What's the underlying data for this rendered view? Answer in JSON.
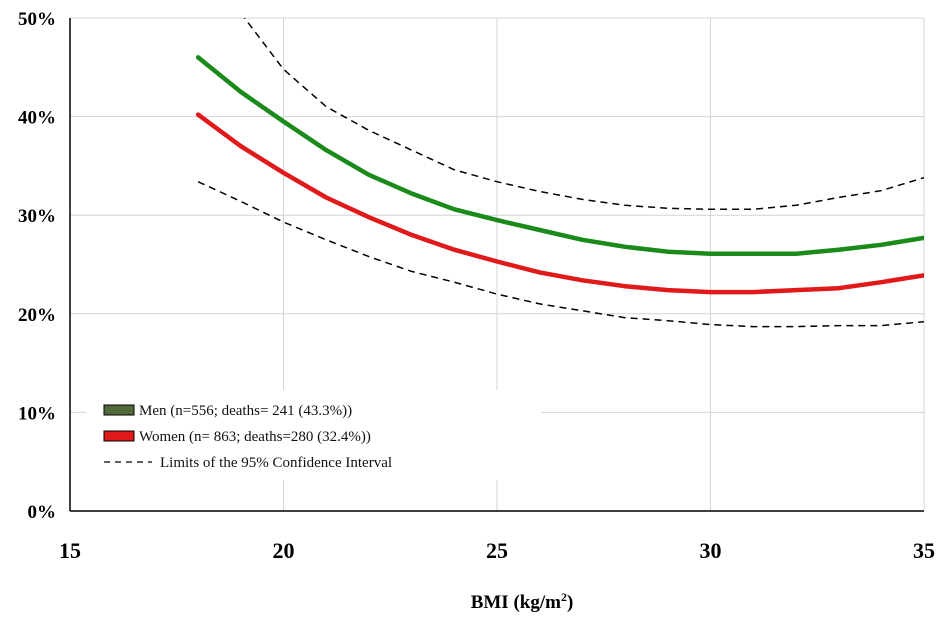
{
  "chart_data": {
    "type": "line",
    "title": "",
    "xlabel": "BMI (kg/m2)",
    "xlabel_main": "BMI (kg/m",
    "xlabel_sup": "2",
    "xlabel_end": ")",
    "ylabel": "",
    "xlim": [
      15,
      35
    ],
    "ylim": [
      0,
      50
    ],
    "x_ticks": [
      15,
      20,
      25,
      30,
      35
    ],
    "y_ticks": [
      0,
      10,
      20,
      30,
      40,
      50
    ],
    "y_tick_labels": [
      "0%",
      "10%",
      "20%",
      "30%",
      "40%",
      "50%"
    ],
    "grid": true,
    "legend_position": "bottom-left",
    "x": [
      18,
      19,
      20,
      21,
      22,
      23,
      24,
      25,
      26,
      27,
      28,
      29,
      30,
      31,
      32,
      33,
      34,
      35
    ],
    "series": [
      {
        "name": "Men (n=556; deaths= 241 (43.3%))",
        "color": "#1a8a1a",
        "legend_swatch": "#4f6b3a",
        "style": "solid",
        "values": [
          46.0,
          42.5,
          39.5,
          36.6,
          34.1,
          32.2,
          30.6,
          29.5,
          28.5,
          27.5,
          26.8,
          26.3,
          26.1,
          26.1,
          26.1,
          26.5,
          27.0,
          27.7
        ]
      },
      {
        "name": "Women  (n= 863; deaths=280 (32.4%))",
        "color": "#e0191b",
        "legend_swatch": "#e0191b",
        "style": "solid",
        "values": [
          40.2,
          37.0,
          34.3,
          31.8,
          29.8,
          28.0,
          26.5,
          25.3,
          24.2,
          23.4,
          22.8,
          22.4,
          22.2,
          22.2,
          22.4,
          22.6,
          23.2,
          23.9
        ]
      },
      {
        "name": "Limits of the 95% Confidence Interval",
        "color": "#000000",
        "legend_swatch": "#000000",
        "style": "dashed",
        "values": [
          null,
          50.5,
          44.8,
          41.0,
          38.6,
          36.6,
          34.6,
          33.4,
          32.4,
          31.6,
          31.0,
          30.7,
          30.6,
          30.6,
          31.0,
          31.8,
          32.5,
          33.8
        ]
      },
      {
        "name": "",
        "color": "#000000",
        "style": "dashed",
        "values": [
          33.4,
          31.4,
          29.3,
          27.5,
          25.8,
          24.3,
          23.2,
          22.0,
          21.0,
          20.3,
          19.6,
          19.3,
          18.9,
          18.7,
          18.7,
          18.8,
          18.8,
          19.2
        ]
      }
    ]
  }
}
